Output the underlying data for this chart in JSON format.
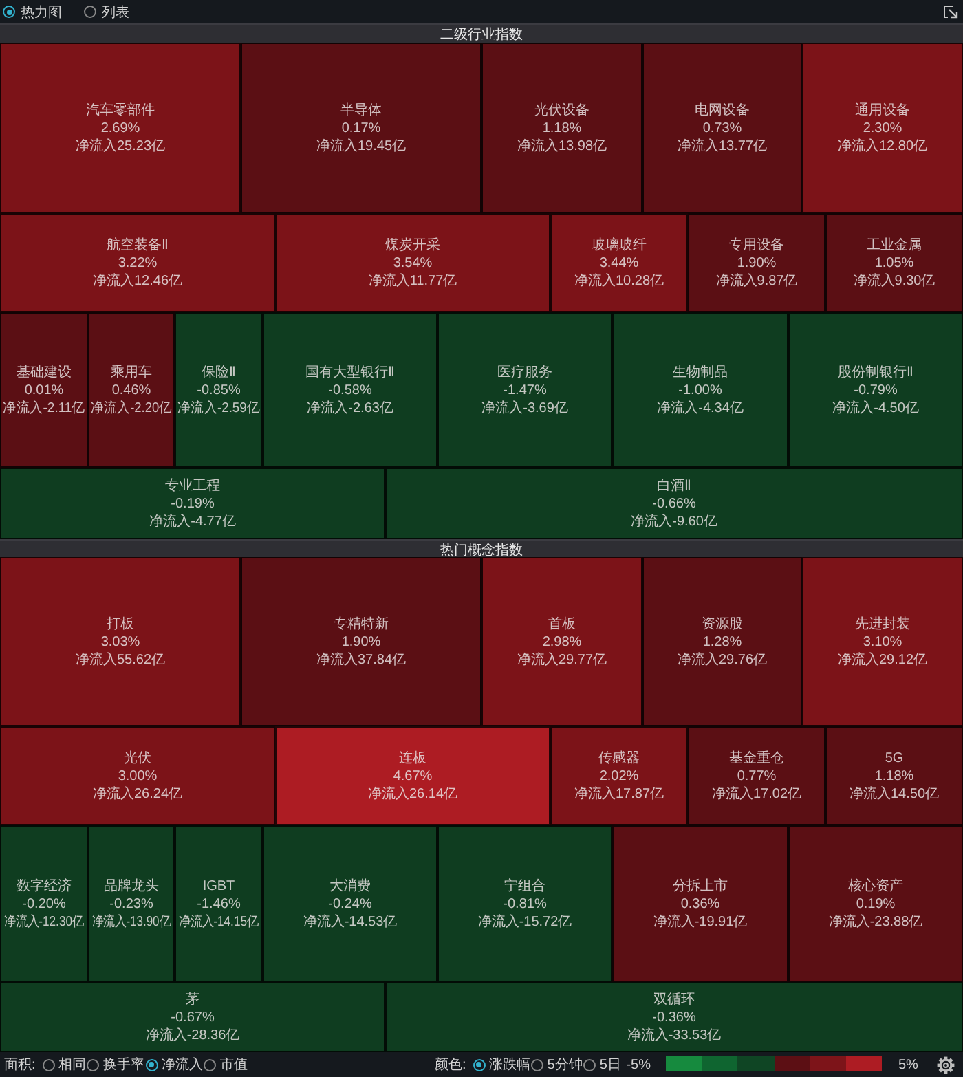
{
  "chart_data": [
    {
      "type": "other",
      "title": "二级行业指数",
      "annotations": [
        "热力图",
        "列表"
      ],
      "categories": [
        "汽车零部件",
        "半导体",
        "光伏设备",
        "电网设备",
        "通用设备",
        "航空装备Ⅱ",
        "煤炭开采",
        "玻璃玻纤",
        "专用设备",
        "工业金属",
        "基础建设",
        "乘用车",
        "保险Ⅱ",
        "国有大型银行Ⅱ",
        "医疗服务",
        "生物制品",
        "股份制银行Ⅱ",
        "专业工程",
        "白酒Ⅱ"
      ],
      "series": [
        {
          "values": [
            2.69,
            0.17,
            1.18,
            0.73,
            2.3,
            3.22,
            3.54,
            3.44,
            1.9,
            1.05,
            0.01,
            0.46,
            -0.85,
            -0.58,
            -1.47,
            -1.0,
            -0.79,
            -0.19,
            -0.66
          ],
          "value_labels": [
            "2.69%",
            "0.17%",
            "1.18%",
            "0.73%",
            "2.30%",
            "3.22%",
            "3.54%",
            "3.44%",
            "1.90%",
            "1.05%",
            "0.01%",
            "0.46%",
            "-0.85%",
            "-0.58%",
            "-1.47%",
            "-1.00%",
            "-0.79%",
            "-0.19%",
            "-0.66%"
          ],
          "colors": [
            "#7c1318",
            "#5b0f14",
            "#5b0f14",
            "#5b0f14",
            "#7c1318",
            "#7c1318",
            "#7c1318",
            "#7c1318",
            "#5b0f14",
            "#5b0f14",
            "#5b0f14",
            "#5b0f14",
            "#0f3d20",
            "#0f3d20",
            "#0f3d20",
            "#0f3d20",
            "#0f3d20",
            "#0f3d20",
            "#0f3d20"
          ]
        },
        {
          "values": [
            25.23,
            19.45,
            13.98,
            13.77,
            12.8,
            12.46,
            11.77,
            10.28,
            9.87,
            9.3,
            -2.11,
            -2.2,
            -2.59,
            -2.63,
            -3.69,
            -4.34,
            -4.5,
            -4.77,
            -9.6
          ],
          "value_labels": [
            "净流入25.23亿",
            "净流入19.45亿",
            "净流入13.98亿",
            "净流入13.77亿",
            "净流入12.80亿",
            "净流入12.46亿",
            "净流入11.77亿",
            "净流入10.28亿",
            "净流入9.87亿",
            "净流入9.30亿",
            "净流入-2.11亿",
            "净流入-2.20亿",
            "净流入-2.59亿",
            "净流入-2.63亿",
            "净流入-3.69亿",
            "净流入-4.34亿",
            "净流入-4.50亿",
            "净流入-4.77亿",
            "净流入-9.60亿"
          ]
        }
      ]
    },
    {
      "type": "other",
      "title": "热门概念指数",
      "annotations": [
        "面积:",
        "相同",
        "换手率",
        "净流入",
        "市值",
        "颜色:",
        "涨跌幅",
        "5分钟",
        "5日",
        "-5%",
        "5%"
      ],
      "categories": [
        "打板",
        "专精特新",
        "首板",
        "资源股",
        "先进封装",
        "光伏",
        "连板",
        "传感器",
        "基金重仓",
        "5G",
        "数字经济",
        "品牌龙头",
        "IGBT",
        "大消费",
        "宁组合",
        "分拆上市",
        "核心资产",
        "茅",
        "双循环"
      ],
      "series": [
        {
          "values": [
            3.03,
            1.9,
            2.98,
            1.28,
            3.1,
            3.0,
            4.67,
            2.02,
            0.77,
            1.18,
            -0.2,
            -0.23,
            -1.46,
            -0.24,
            -0.81,
            0.36,
            0.19,
            -0.67,
            -0.36
          ],
          "value_labels": [
            "3.03%",
            "1.90%",
            "2.98%",
            "1.28%",
            "3.10%",
            "3.00%",
            "4.67%",
            "2.02%",
            "0.77%",
            "1.18%",
            "-0.20%",
            "-0.23%",
            "-1.46%",
            "-0.24%",
            "-0.81%",
            "0.36%",
            "0.19%",
            "-0.67%",
            "-0.36%"
          ],
          "colors": [
            "#7c1318",
            "#5b0f14",
            "#7c1318",
            "#5b0f14",
            "#7c1318",
            "#7c1318",
            "#ad1c23",
            "#7c1318",
            "#5b0f14",
            "#5b0f14",
            "#0f3d20",
            "#0f3d20",
            "#0f3d20",
            "#0f3d20",
            "#0f3d20",
            "#5b0f14",
            "#5b0f14",
            "#0f3d20",
            "#0f3d20"
          ]
        },
        {
          "values": [
            55.62,
            37.84,
            29.77,
            29.76,
            29.12,
            26.24,
            26.14,
            17.87,
            17.02,
            14.5,
            -12.3,
            -13.9,
            -14.15,
            -14.53,
            -15.72,
            -19.91,
            -23.88,
            -28.36,
            -33.53
          ],
          "value_labels": [
            "净流入55.62亿",
            "净流入37.84亿",
            "净流入29.77亿",
            "净流入29.76亿",
            "净流入29.12亿",
            "净流入26.24亿",
            "净流入26.14亿",
            "净流入17.87亿",
            "净流入17.02亿",
            "净流入14.50亿",
            "净流入-12.30亿",
            "净流入-13.90亿",
            "净流入-14.15亿",
            "净流入-14.53亿",
            "净流入-15.72亿",
            "净流入-19.91亿",
            "净流入-23.88亿",
            "净流入-28.36亿",
            "净流入-33.53亿"
          ]
        }
      ]
    }
  ]
}
